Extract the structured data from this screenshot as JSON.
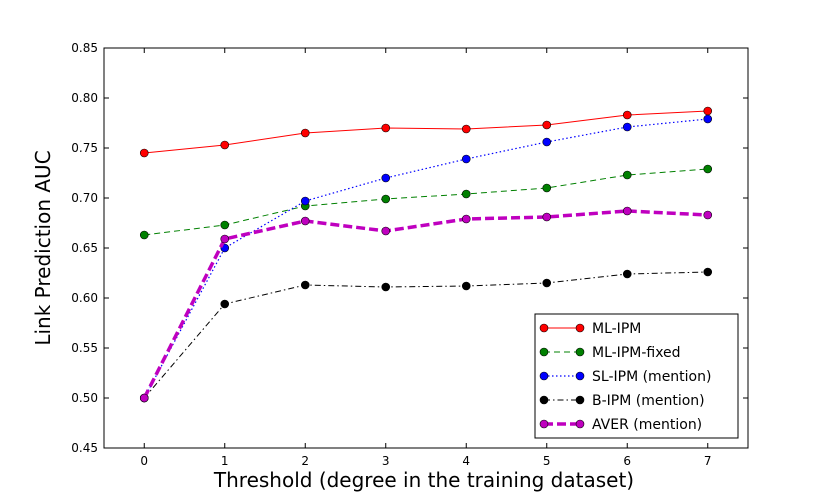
{
  "chart_data": {
    "type": "line",
    "title": "",
    "xlabel": "Threshold (degree in the training dataset)",
    "ylabel": "Link Prediction AUC",
    "x": [
      0,
      1,
      2,
      3,
      4,
      5,
      6,
      7
    ],
    "x_tick_labels": [
      "0",
      "1",
      "2",
      "3",
      "4",
      "5",
      "6",
      "7"
    ],
    "xlim": [
      -0.5,
      7.5
    ],
    "ylim": [
      0.45,
      0.85
    ],
    "y_ticks": [
      0.45,
      0.5,
      0.55,
      0.6,
      0.65,
      0.7,
      0.75,
      0.8,
      0.85
    ],
    "y_tick_labels": [
      "0.45",
      "0.50",
      "0.55",
      "0.60",
      "0.65",
      "0.70",
      "0.75",
      "0.80",
      "0.85"
    ],
    "grid": false,
    "legend_position": "lower-right",
    "series": [
      {
        "name": "ML-IPM",
        "color": "#ff0000",
        "linestyle": "solid",
        "values": [
          0.745,
          0.753,
          0.765,
          0.77,
          0.769,
          0.773,
          0.783,
          0.787
        ]
      },
      {
        "name": "ML-IPM-fixed",
        "color": "#008000",
        "linestyle": "dashed",
        "values": [
          0.663,
          0.673,
          0.692,
          0.699,
          0.704,
          0.71,
          0.723,
          0.729
        ]
      },
      {
        "name": "SL-IPM (mention)",
        "color": "#0000ff",
        "linestyle": "dotted",
        "values": [
          0.5,
          0.65,
          0.697,
          0.72,
          0.739,
          0.756,
          0.771,
          0.779
        ]
      },
      {
        "name": "B-IPM (mention)",
        "color": "#000000",
        "linestyle": "dashdot",
        "values": [
          0.5,
          0.594,
          0.613,
          0.611,
          0.612,
          0.615,
          0.624,
          0.626
        ]
      },
      {
        "name": "AVER (mention)",
        "color": "#bf00bf",
        "linestyle": "dashed-thick",
        "values": [
          0.5,
          0.659,
          0.677,
          0.667,
          0.679,
          0.681,
          0.687,
          0.683
        ]
      }
    ]
  }
}
